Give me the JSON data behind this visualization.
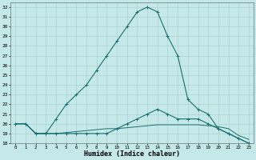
{
  "xlabel": "Humidex (Indice chaleur)",
  "bg_color": "#c5e8e8",
  "grid_color": "#aacccc",
  "line_color": "#1a7070",
  "xlim": [
    -0.5,
    23.5
  ],
  "ylim": [
    18,
    32.5
  ],
  "yticks": [
    18,
    19,
    20,
    21,
    22,
    23,
    24,
    25,
    26,
    27,
    28,
    29,
    30,
    31,
    32
  ],
  "xticks": [
    0,
    1,
    2,
    3,
    4,
    5,
    6,
    7,
    8,
    9,
    10,
    11,
    12,
    13,
    14,
    15,
    16,
    17,
    18,
    19,
    20,
    21,
    22,
    23
  ],
  "series": [
    {
      "x": [
        0,
        1,
        2,
        3,
        4,
        5,
        6,
        7,
        8,
        9,
        10,
        11,
        12,
        13,
        14,
        15,
        16,
        17,
        18,
        19,
        20,
        21,
        22,
        23
      ],
      "y": [
        20,
        20,
        19,
        19,
        20.5,
        22,
        23,
        24,
        25.5,
        27,
        28.5,
        30,
        31.5,
        32,
        31.5,
        29,
        27,
        22.5,
        21.5,
        21,
        19.5,
        19,
        18.5,
        18
      ],
      "marker": true
    },
    {
      "x": [
        0,
        1,
        2,
        3,
        4,
        5,
        6,
        7,
        8,
        9,
        10,
        11,
        12,
        13,
        14,
        15,
        16,
        17,
        18,
        19,
        20,
        21,
        22,
        23
      ],
      "y": [
        20,
        20,
        19,
        19,
        19,
        19,
        19,
        19,
        19,
        19,
        19.5,
        20,
        20.5,
        21,
        21.5,
        21,
        20.5,
        20.5,
        20.5,
        20,
        19.5,
        19,
        18.5,
        18
      ],
      "marker": true
    },
    {
      "x": [
        0,
        1,
        2,
        3,
        4,
        5,
        6,
        7,
        8,
        9,
        10,
        11,
        12,
        13,
        14,
        15,
        16,
        17,
        18,
        19,
        20,
        21,
        22,
        23
      ],
      "y": [
        20,
        20,
        19,
        19,
        19,
        19.1,
        19.2,
        19.3,
        19.4,
        19.5,
        19.5,
        19.6,
        19.7,
        19.8,
        19.9,
        19.9,
        19.9,
        19.9,
        19.9,
        19.8,
        19.7,
        19.5,
        18.8,
        18.4
      ],
      "marker": false
    }
  ]
}
